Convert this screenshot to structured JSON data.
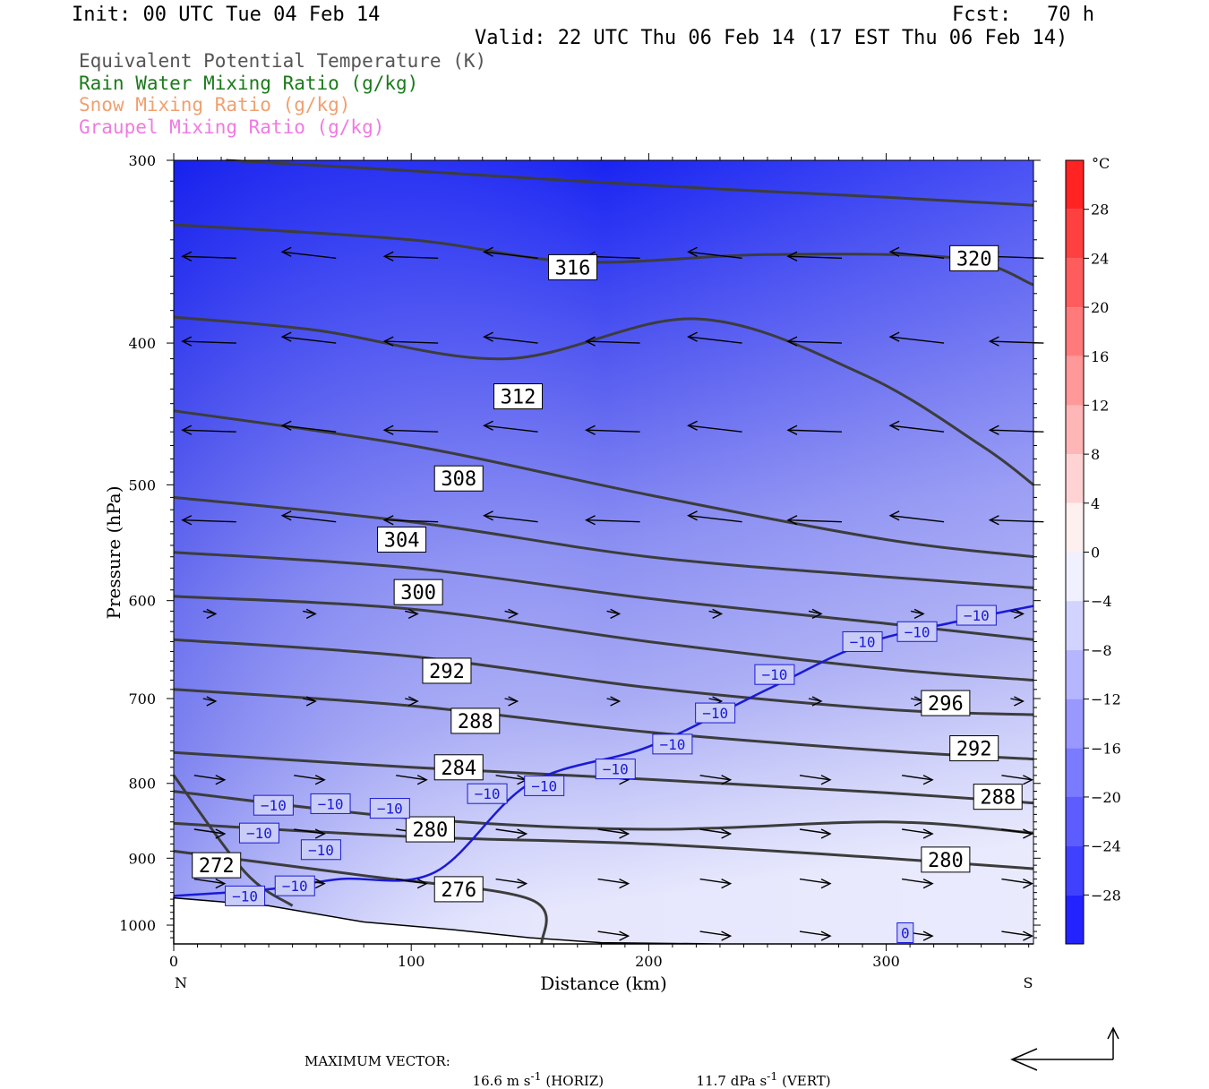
{
  "header": {
    "init": "Init: 00 UTC Tue 04 Feb 14",
    "fcst": "Fcst:   70 h",
    "valid": "Valid: 22 UTC Thu 06 Feb 14 (17 EST Thu 06 Feb 14)"
  },
  "legend": [
    {
      "text": "Equivalent Potential Temperature (K)",
      "color": "#555555"
    },
    {
      "text": "Rain Water Mixing Ratio (g/kg)",
      "color": "#1a7a1a"
    },
    {
      "text": "Snow Mixing Ratio (g/kg)",
      "color": "#f0a070"
    },
    {
      "text": "Graupel Mixing Ratio (g/kg)",
      "color": "#f07ae0"
    }
  ],
  "footer": {
    "max_vector_label": "MAXIMUM VECTOR:",
    "horiz": "16.6 m s",
    "horiz_unit": "(HORIZ)",
    "vert": "11.7 dPa s",
    "vert_unit": "(VERT)",
    "exp": "-1"
  },
  "chart_data": {
    "type": "heatmap",
    "xlabel": "Distance (km)",
    "ylabel": "Pressure (hPa)",
    "xlim": [
      0,
      362
    ],
    "ylim": [
      1030,
      300
    ],
    "y_scale": "log",
    "x_ticks": [
      0,
      100,
      200,
      300
    ],
    "y_ticks": [
      300,
      400,
      500,
      600,
      700,
      800,
      900,
      1000
    ],
    "x_end_labels": {
      "left": "N",
      "right": "S"
    },
    "colorbar": {
      "unit": "°C",
      "levels": [
        28,
        24,
        20,
        16,
        12,
        8,
        4,
        0,
        -4,
        -8,
        -12,
        -16,
        -20,
        -24,
        -28
      ]
    },
    "theta_e_labels": [
      {
        "label": "316",
        "x": 168,
        "p": 355
      },
      {
        "label": "320",
        "x": 337,
        "p": 350
      },
      {
        "label": "312",
        "x": 145,
        "p": 435
      },
      {
        "label": "308",
        "x": 120,
        "p": 495
      },
      {
        "label": "304",
        "x": 96,
        "p": 545
      },
      {
        "label": "300",
        "x": 103,
        "p": 592
      },
      {
        "label": "292",
        "x": 115,
        "p": 670
      },
      {
        "label": "296",
        "x": 325,
        "p": 705
      },
      {
        "label": "288",
        "x": 127,
        "p": 725
      },
      {
        "label": "292",
        "x": 337,
        "p": 757
      },
      {
        "label": "284",
        "x": 120,
        "p": 780
      },
      {
        "label": "288",
        "x": 347,
        "p": 817
      },
      {
        "label": "280",
        "x": 108,
        "p": 860
      },
      {
        "label": "280",
        "x": 325,
        "p": 902
      },
      {
        "label": "272",
        "x": 18,
        "p": 910
      },
      {
        "label": "276",
        "x": 120,
        "p": 945
      }
    ],
    "temperature_labels": [
      {
        "label": "−10",
        "x": 338,
        "p": 614
      },
      {
        "label": "−10",
        "x": 313,
        "p": 630
      },
      {
        "label": "−10",
        "x": 290,
        "p": 640
      },
      {
        "label": "−10",
        "x": 253,
        "p": 674
      },
      {
        "label": "−10",
        "x": 228,
        "p": 716
      },
      {
        "label": "−10",
        "x": 210,
        "p": 752
      },
      {
        "label": "−10",
        "x": 186,
        "p": 782
      },
      {
        "label": "−10",
        "x": 156,
        "p": 803
      },
      {
        "label": "−10",
        "x": 132,
        "p": 813
      },
      {
        "label": "−10",
        "x": 91,
        "p": 832
      },
      {
        "label": "−10",
        "x": 66,
        "p": 826
      },
      {
        "label": "−10",
        "x": 42,
        "p": 828
      },
      {
        "label": "−10",
        "x": 36,
        "p": 865
      },
      {
        "label": "−10",
        "x": 62,
        "p": 888
      },
      {
        "label": "−10",
        "x": 51,
        "p": 940
      },
      {
        "label": "−10",
        "x": 30,
        "p": 955
      },
      {
        "label": "0",
        "x": 308,
        "p": 1012
      }
    ],
    "theta_e_contours": [
      {
        "x": [
          22,
          100,
          200,
          300,
          362
        ],
        "p": [
          300,
          305,
          312,
          318,
          322
        ]
      },
      {
        "x": [
          0,
          100,
          170,
          250,
          330,
          362
        ],
        "p": [
          332,
          340,
          352,
          348,
          350,
          365
        ]
      },
      {
        "x": [
          0,
          60,
          140,
          220,
          290,
          340,
          362
        ],
        "p": [
          384,
          392,
          410,
          385,
          420,
          470,
          500
        ]
      },
      {
        "x": [
          0,
          100,
          200,
          300,
          362
        ],
        "p": [
          445,
          470,
          508,
          545,
          560
        ]
      },
      {
        "x": [
          0,
          100,
          200,
          300,
          362
        ],
        "p": [
          510,
          530,
          560,
          578,
          588
        ]
      },
      {
        "x": [
          0,
          100,
          200,
          300,
          362
        ],
        "p": [
          556,
          570,
          598,
          622,
          638
        ]
      },
      {
        "x": [
          0,
          100,
          200,
          300,
          362
        ],
        "p": [
          596,
          608,
          640,
          668,
          680
        ]
      },
      {
        "x": [
          0,
          100,
          200,
          300,
          362
        ],
        "p": [
          638,
          655,
          688,
          712,
          718
        ]
      },
      {
        "x": [
          0,
          100,
          200,
          300,
          362
        ],
        "p": [
          690,
          708,
          738,
          760,
          770
        ]
      },
      {
        "x": [
          0,
          100,
          200,
          300,
          362
        ],
        "p": [
          762,
          780,
          795,
          812,
          825
        ]
      },
      {
        "x": [
          0,
          100,
          200,
          300,
          362
        ],
        "p": [
          810,
          845,
          860,
          850,
          865
        ]
      },
      {
        "x": [
          0,
          100,
          200,
          300,
          362
        ],
        "p": [
          852,
          870,
          880,
          900,
          915
        ]
      },
      {
        "x": [
          0,
          80,
          150,
          155
        ],
        "p": [
          890,
          925,
          960,
          1030
        ]
      },
      {
        "x": [
          0,
          30,
          50
        ],
        "p": [
          790,
          920,
          970
        ]
      }
    ],
    "temperature_contours": [
      {
        "x": [
          0,
          40,
          70,
          110,
          150,
          200,
          250,
          290,
          330,
          362
        ],
        "p": [
          955,
          945,
          930,
          920,
          800,
          755,
          690,
          643,
          620,
          605
        ]
      }
    ]
  }
}
